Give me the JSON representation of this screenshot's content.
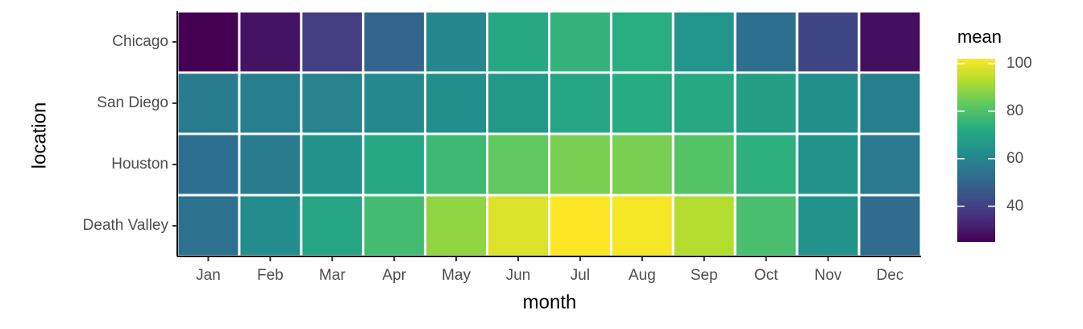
{
  "chart_data": {
    "type": "heatmap",
    "x_label": "month",
    "y_label": "location",
    "legend_title": "mean",
    "categories": [
      "Jan",
      "Feb",
      "Mar",
      "Apr",
      "May",
      "Jun",
      "Jul",
      "Aug",
      "Sep",
      "Oct",
      "Nov",
      "Dec"
    ],
    "y_categories": [
      "Chicago",
      "San Diego",
      "Houston",
      "Death Valley"
    ],
    "values": [
      [
        25,
        29,
        39,
        50,
        60,
        71,
        75,
        73,
        65,
        53,
        41,
        28
      ],
      [
        57,
        58,
        59,
        61,
        63,
        66,
        70,
        72,
        71,
        68,
        63,
        58
      ],
      [
        53,
        57,
        64,
        71,
        77,
        83,
        86,
        86,
        81,
        74,
        64,
        56
      ],
      [
        54,
        62,
        70,
        78,
        89,
        98,
        102,
        101,
        93,
        79,
        64,
        52
      ]
    ],
    "colorbar_ticks": [
      40,
      60,
      80,
      100
    ],
    "colors": [
      "#440154",
      "#472d7b",
      "#3b528b",
      "#2c728e",
      "#21918c",
      "#28ae80",
      "#5ec962",
      "#addc30",
      "#fde725"
    ]
  }
}
